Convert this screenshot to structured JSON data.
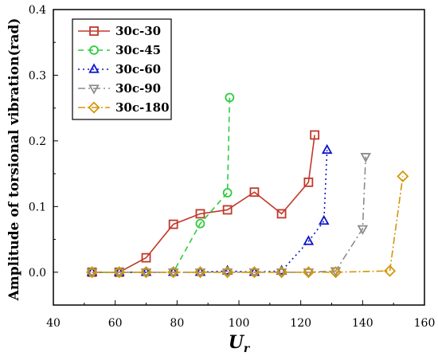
{
  "chart_data": {
    "type": "line",
    "title": "",
    "xlabel_main": "U",
    "xlabel_sub": "r",
    "ylabel": "Amplitude of torsional vibration(rad)",
    "xlim": [
      40,
      160
    ],
    "ylim": [
      -0.05,
      0.4
    ],
    "x_ticks": [
      40,
      60,
      80,
      100,
      120,
      140,
      160
    ],
    "y_ticks": [
      0.0,
      0.1,
      0.2,
      0.3,
      0.4
    ],
    "x_tick_labels": [
      "40",
      "60",
      "80",
      "100",
      "120",
      "140",
      "160"
    ],
    "y_tick_labels": [
      "0.0",
      "0.1",
      "0.2",
      "0.3",
      "0.4"
    ],
    "legend_position": "top-left",
    "series": [
      {
        "name": "30c-30",
        "color": "#c0392b",
        "marker": "square",
        "dash": "",
        "x": [
          52.5,
          61.3,
          70.0,
          78.8,
          87.5,
          96.3,
          105.0,
          113.8,
          122.5,
          124.5
        ],
        "y": [
          0.0,
          0.0,
          0.022,
          0.073,
          0.089,
          0.095,
          0.122,
          0.089,
          0.137,
          0.209
        ]
      },
      {
        "name": "30c-45",
        "color": "#2ecc40",
        "marker": "circle",
        "dash": "7,5",
        "x": [
          52.5,
          61.3,
          70.0,
          78.8,
          87.5,
          96.3,
          97.0
        ],
        "y": [
          0.0,
          0.0,
          0.0,
          0.0,
          0.074,
          0.121,
          0.266
        ]
      },
      {
        "name": "30c-60",
        "color": "#0a14c8",
        "marker": "triangle-up",
        "dash": "2,4",
        "x": [
          52.5,
          61.3,
          70.0,
          78.8,
          87.5,
          96.3,
          105.0,
          113.8,
          122.5,
          127.5,
          128.5
        ],
        "y": [
          0.0,
          0.0,
          0.0,
          0.0,
          0.0,
          0.002,
          0.0,
          0.002,
          0.047,
          0.078,
          0.186
        ]
      },
      {
        "name": "30c-90",
        "color": "#8c8c8c",
        "marker": "triangle-down",
        "dash": "9,4,2,4",
        "x": [
          52.5,
          61.3,
          70.0,
          78.8,
          87.5,
          96.3,
          105.0,
          113.8,
          122.5,
          131.3,
          140.0,
          141.0
        ],
        "y": [
          0.0,
          0.0,
          0.0,
          0.0,
          0.0,
          0.0,
          0.0,
          0.0,
          0.0,
          0.002,
          0.066,
          0.176
        ]
      },
      {
        "name": "30c-180",
        "color": "#d4960a",
        "marker": "diamond",
        "dash": "9,3,2,3",
        "x": [
          52.5,
          61.3,
          70.0,
          78.8,
          87.5,
          96.3,
          105.0,
          113.8,
          122.5,
          131.3,
          148.8,
          153.0
        ],
        "y": [
          0.0,
          0.0,
          0.0,
          0.0,
          0.0,
          0.0,
          0.0,
          0.0,
          0.0,
          0.0,
          0.002,
          0.146
        ]
      }
    ]
  }
}
